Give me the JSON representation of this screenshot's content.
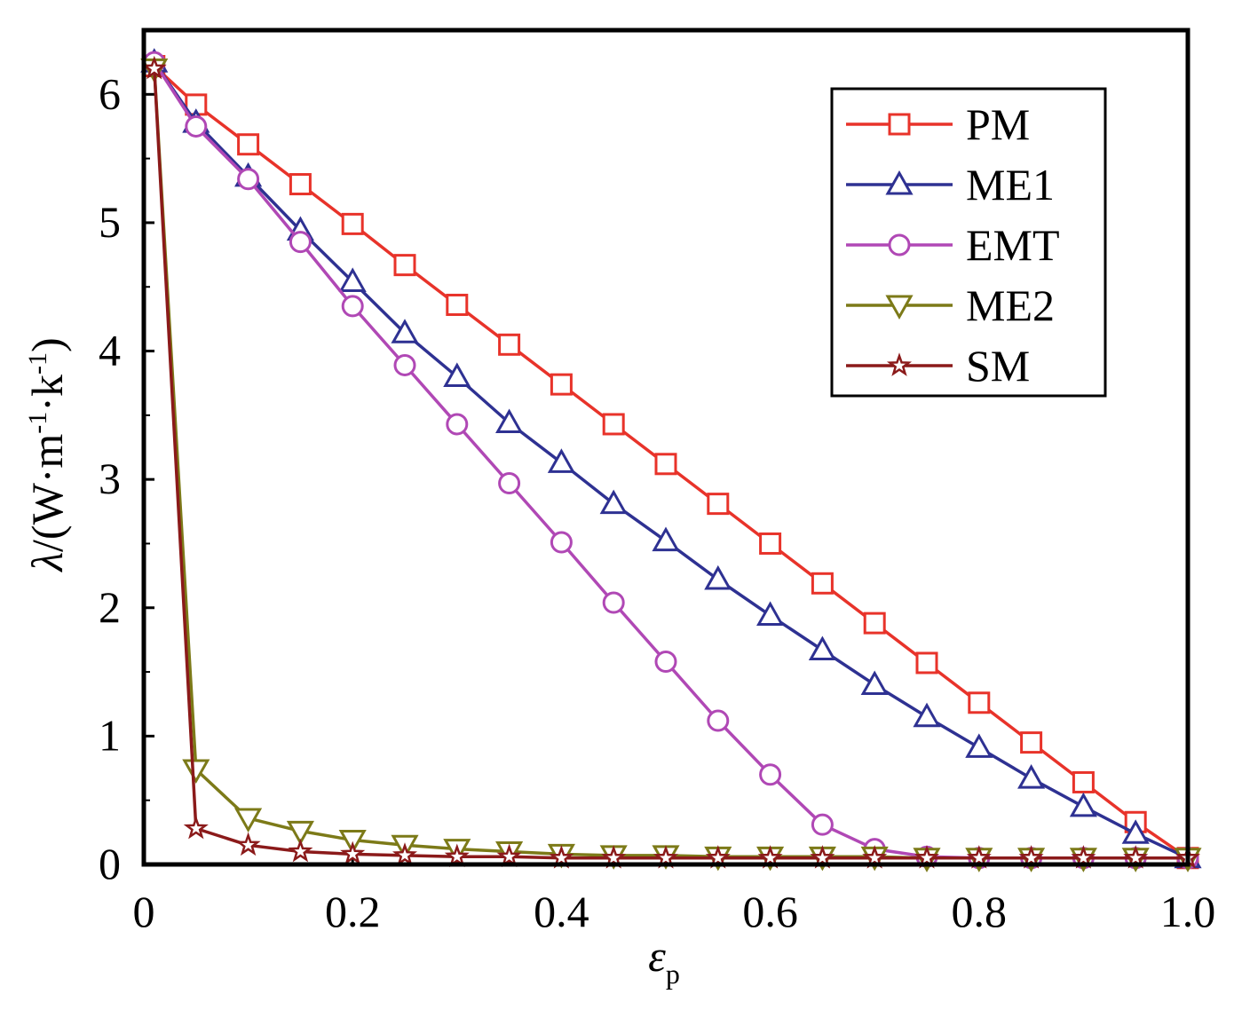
{
  "chart_data": {
    "type": "line",
    "title": "",
    "xlabel": "ε",
    "xlabel_sub": "p",
    "ylabel": "λ/(W·m⁻¹·k⁻¹)",
    "ylabel_parts": {
      "lambda": "λ",
      "lead": "/(W·m",
      "exp1": "-1",
      "mid": "·k",
      "exp2": "-1",
      "close": ")"
    },
    "xlim": [
      0,
      1.0
    ],
    "ylim": [
      0,
      6.5
    ],
    "xticks": [
      0,
      0.2,
      0.4,
      0.6,
      0.8,
      1.0
    ],
    "xtick_labels": [
      "0",
      "0.2",
      "0.4",
      "0.6",
      "0.8",
      "1.0"
    ],
    "yticks": [
      0,
      1,
      2,
      3,
      4,
      5,
      6
    ],
    "ytick_labels": [
      "0",
      "1",
      "2",
      "3",
      "4",
      "5",
      "6"
    ],
    "grid": false,
    "legend_position": "top-right",
    "x": [
      0.01,
      0.05,
      0.1,
      0.15,
      0.2,
      0.25,
      0.3,
      0.35,
      0.4,
      0.45,
      0.5,
      0.55,
      0.6,
      0.65,
      0.7,
      0.75,
      0.8,
      0.85,
      0.9,
      0.95,
      1.0
    ],
    "series": [
      {
        "name": "PM",
        "color": "#e8332a",
        "marker": "square",
        "values": [
          6.22,
          5.92,
          5.61,
          5.3,
          4.99,
          4.67,
          4.36,
          4.05,
          3.74,
          3.43,
          3.12,
          2.81,
          2.5,
          2.19,
          1.88,
          1.57,
          1.26,
          0.95,
          0.64,
          0.33,
          0.05
        ]
      },
      {
        "name": "ME1",
        "color": "#2e3192",
        "marker": "triangle-up",
        "values": [
          6.25,
          5.78,
          5.36,
          4.94,
          4.54,
          4.14,
          3.8,
          3.44,
          3.13,
          2.81,
          2.52,
          2.22,
          1.94,
          1.67,
          1.4,
          1.15,
          0.91,
          0.67,
          0.45,
          0.24,
          0.05
        ]
      },
      {
        "name": "EMT",
        "color": "#b048b5",
        "marker": "circle",
        "values": [
          6.25,
          5.75,
          5.34,
          4.85,
          4.35,
          3.89,
          3.43,
          2.97,
          2.51,
          2.04,
          1.58,
          1.12,
          0.7,
          0.31,
          0.12,
          0.06,
          0.05,
          0.05,
          0.05,
          0.05,
          0.05
        ]
      },
      {
        "name": "ME2",
        "color": "#7c7a18",
        "marker": "triangle-down",
        "values": [
          6.2,
          0.74,
          0.36,
          0.26,
          0.19,
          0.15,
          0.12,
          0.1,
          0.08,
          0.07,
          0.07,
          0.06,
          0.06,
          0.06,
          0.06,
          0.05,
          0.05,
          0.05,
          0.05,
          0.05,
          0.05
        ]
      },
      {
        "name": "SM",
        "color": "#8b1a1a",
        "marker": "star",
        "values": [
          6.2,
          0.28,
          0.15,
          0.1,
          0.08,
          0.07,
          0.06,
          0.06,
          0.05,
          0.05,
          0.05,
          0.05,
          0.05,
          0.05,
          0.05,
          0.05,
          0.05,
          0.05,
          0.05,
          0.05,
          0.05
        ]
      }
    ]
  }
}
